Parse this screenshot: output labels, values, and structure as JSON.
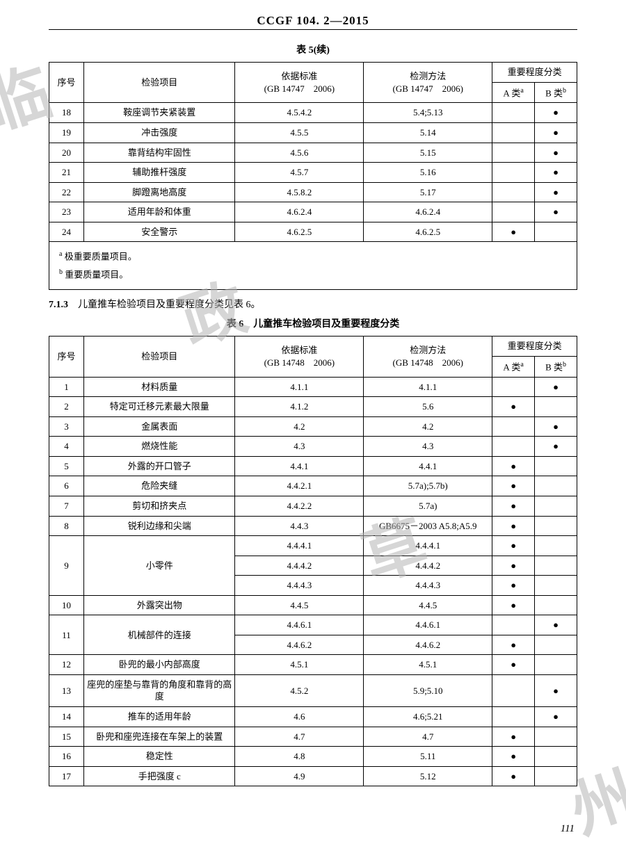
{
  "header": "CCGF 104. 2—2015",
  "table5": {
    "caption": "表 5(续)",
    "head": {
      "seq": "序号",
      "item": "检验项目",
      "std": "依据标准",
      "std_sub": "(GB 14747　2006)",
      "meth": "检测方法",
      "meth_sub": "(GB 14747　2006)",
      "group": "重要程度分类",
      "a": "A 类",
      "b": "B 类"
    },
    "rows": [
      {
        "seq": "18",
        "item": "鞍座调节夹紧装置",
        "std": "4.5.4.2",
        "meth": "5.4;5.13",
        "a": "",
        "b": "●"
      },
      {
        "seq": "19",
        "item": "冲击强度",
        "std": "4.5.5",
        "meth": "5.14",
        "a": "",
        "b": "●"
      },
      {
        "seq": "20",
        "item": "靠背结构牢固性",
        "std": "4.5.6",
        "meth": "5.15",
        "a": "",
        "b": "●"
      },
      {
        "seq": "21",
        "item": "辅助推杆强度",
        "std": "4.5.7",
        "meth": "5.16",
        "a": "",
        "b": "●"
      },
      {
        "seq": "22",
        "item": "脚蹬离地高度",
        "std": "4.5.8.2",
        "meth": "5.17",
        "a": "",
        "b": "●"
      },
      {
        "seq": "23",
        "item": "适用年龄和体重",
        "std": "4.6.2.4",
        "meth": "4.6.2.4",
        "a": "",
        "b": "●"
      },
      {
        "seq": "24",
        "item": "安全警示",
        "std": "4.6.2.5",
        "meth": "4.6.2.5",
        "a": "●",
        "b": ""
      }
    ],
    "footnote_a": "极重要质量项目。",
    "footnote_b": "重要质量项目。"
  },
  "section": {
    "num": "7.1.3",
    "text": "儿童推车检验项目及重要程度分类见表 6。"
  },
  "table6": {
    "caption": "表 6　儿童推车检验项目及重要程度分类",
    "head": {
      "seq": "序号",
      "item": "检验项目",
      "std": "依据标准",
      "std_sub": "(GB 14748　2006)",
      "meth": "检测方法",
      "meth_sub": "(GB 14748　2006)",
      "group": "重要程度分类",
      "a": "A 类",
      "b": "B 类"
    },
    "rows": [
      {
        "seq": "1",
        "item": "材料质量",
        "std": [
          "4.1.1"
        ],
        "meth": [
          "4.1.1"
        ],
        "a": [
          ""
        ],
        "b": [
          "●"
        ]
      },
      {
        "seq": "2",
        "item": "特定可迁移元素最大限量",
        "std": [
          "4.1.2"
        ],
        "meth": [
          "5.6"
        ],
        "a": [
          "●"
        ],
        "b": [
          ""
        ]
      },
      {
        "seq": "3",
        "item": "金属表面",
        "std": [
          "4.2"
        ],
        "meth": [
          "4.2"
        ],
        "a": [
          ""
        ],
        "b": [
          "●"
        ]
      },
      {
        "seq": "4",
        "item": "燃烧性能",
        "std": [
          "4.3"
        ],
        "meth": [
          "4.3"
        ],
        "a": [
          ""
        ],
        "b": [
          "●"
        ]
      },
      {
        "seq": "5",
        "item": "外露的开口管子",
        "std": [
          "4.4.1"
        ],
        "meth": [
          "4.4.1"
        ],
        "a": [
          "●"
        ],
        "b": [
          ""
        ]
      },
      {
        "seq": "6",
        "item": "危险夹缝",
        "std": [
          "4.4.2.1"
        ],
        "meth": [
          "5.7a);5.7b)"
        ],
        "a": [
          "●"
        ],
        "b": [
          ""
        ]
      },
      {
        "seq": "7",
        "item": "剪切和挤夹点",
        "std": [
          "4.4.2.2"
        ],
        "meth": [
          "5.7a)"
        ],
        "a": [
          "●"
        ],
        "b": [
          ""
        ]
      },
      {
        "seq": "8",
        "item": "锐利边缘和尖端",
        "std": [
          "4.4.3"
        ],
        "meth": [
          "GB6675－2003 A5.8;A5.9"
        ],
        "a": [
          "●"
        ],
        "b": [
          ""
        ]
      },
      {
        "seq": "9",
        "item": "小零件",
        "std": [
          "4.4.4.1",
          "4.4.4.2",
          "4.4.4.3"
        ],
        "meth": [
          "4.4.4.1",
          "4.4.4.2",
          "4.4.4.3"
        ],
        "a": [
          "●",
          "●",
          "●"
        ],
        "b": [
          "",
          "",
          ""
        ]
      },
      {
        "seq": "10",
        "item": "外露突出物",
        "std": [
          "4.4.5"
        ],
        "meth": [
          "4.4.5"
        ],
        "a": [
          "●"
        ],
        "b": [
          ""
        ]
      },
      {
        "seq": "11",
        "item": "机械部件的连接",
        "std": [
          "4.4.6.1",
          "4.4.6.2"
        ],
        "meth": [
          "4.4.6.1",
          "4.4.6.2"
        ],
        "a": [
          "",
          "●"
        ],
        "b": [
          "●",
          ""
        ]
      },
      {
        "seq": "12",
        "item": "卧兜的最小内部高度",
        "std": [
          "4.5.1"
        ],
        "meth": [
          "4.5.1"
        ],
        "a": [
          "●"
        ],
        "b": [
          ""
        ]
      },
      {
        "seq": "13",
        "item": "座兜的座垫与靠背的角度和靠背的高度",
        "std": [
          "4.5.2"
        ],
        "meth": [
          "5.9;5.10"
        ],
        "a": [
          ""
        ],
        "b": [
          "●"
        ]
      },
      {
        "seq": "14",
        "item": "推车的适用年龄",
        "std": [
          "4.6"
        ],
        "meth": [
          "4.6;5.21"
        ],
        "a": [
          ""
        ],
        "b": [
          "●"
        ]
      },
      {
        "seq": "15",
        "item": "卧兜和座兜连接在车架上的装置",
        "std": [
          "4.7"
        ],
        "meth": [
          "4.7"
        ],
        "a": [
          "●"
        ],
        "b": [
          ""
        ]
      },
      {
        "seq": "16",
        "item": "稳定性",
        "std": [
          "4.8"
        ],
        "meth": [
          "5.11"
        ],
        "a": [
          "●"
        ],
        "b": [
          ""
        ]
      },
      {
        "seq": "17",
        "item": "手把强度 c",
        "std": [
          "4.9"
        ],
        "meth": [
          "5.12"
        ],
        "a": [
          "●"
        ],
        "b": [
          ""
        ]
      }
    ]
  },
  "page_number": "111"
}
